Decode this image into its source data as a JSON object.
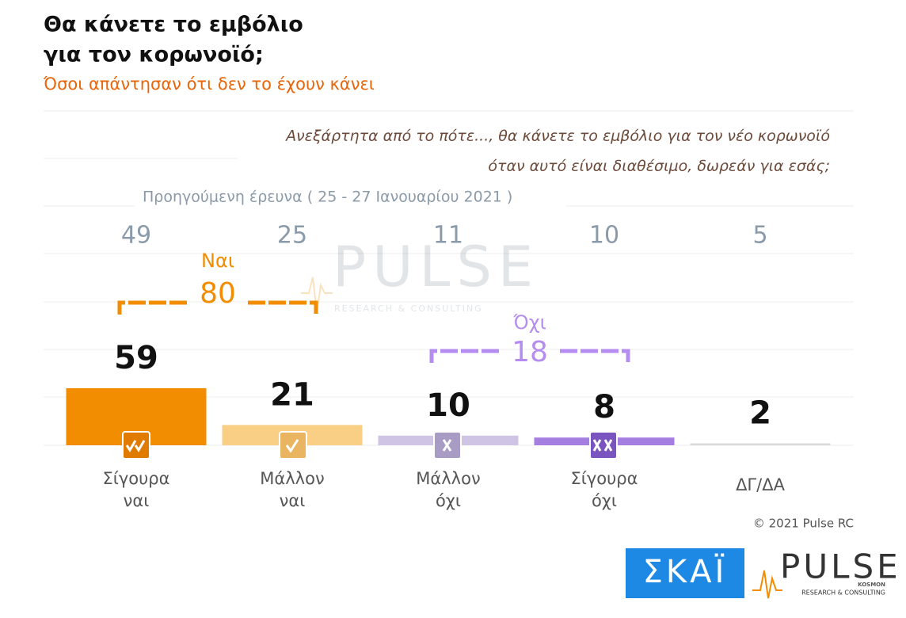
{
  "chart_data": {
    "type": "bar",
    "title": [
      "Θα κάνετε το εμβόλιο",
      "για τον κορωνοϊό;"
    ],
    "subtitle": "Όσοι απάντησαν ότι δεν το έχουν κάνει",
    "question": [
      "Ανεξάρτητα από το πότε..., θα κάνετε το εμβόλιο για τον νέο κορωνοϊό",
      "όταν αυτό είναι διαθέσιμο, δωρεάν για εσάς;"
    ],
    "categories": [
      [
        "Σίγουρα",
        "ναι"
      ],
      [
        "Μάλλον",
        "ναι"
      ],
      [
        "Μάλλον",
        "όχι"
      ],
      [
        "Σίγουρα",
        "όχι"
      ],
      [
        "ΔΓ/ΔΑ"
      ]
    ],
    "values": [
      59,
      21,
      10,
      8,
      2
    ],
    "colors": [
      "#f28c00",
      "#f9cf85",
      "#cfc4e4",
      "#a47ee0",
      "#d9d9d9"
    ],
    "previous": {
      "label": "Προηγούμενη έρευνα  ( 25 - 27  Ιανουαρίου  2021 )",
      "values": [
        49,
        25,
        11,
        10,
        5
      ]
    },
    "groups": [
      {
        "name": "Ναι",
        "value": 80,
        "color": "#f28c00"
      },
      {
        "name": "Όχι",
        "value": 18,
        "color": "#b58cf0"
      }
    ],
    "copyright": "© 2021 Pulse RC",
    "logos": {
      "skai": "ΣΚΑΪ",
      "pulse": "PULSE",
      "pulse_sub": "RESEARCH & CONSULTING",
      "pulse_tag": "KOSMON"
    }
  }
}
